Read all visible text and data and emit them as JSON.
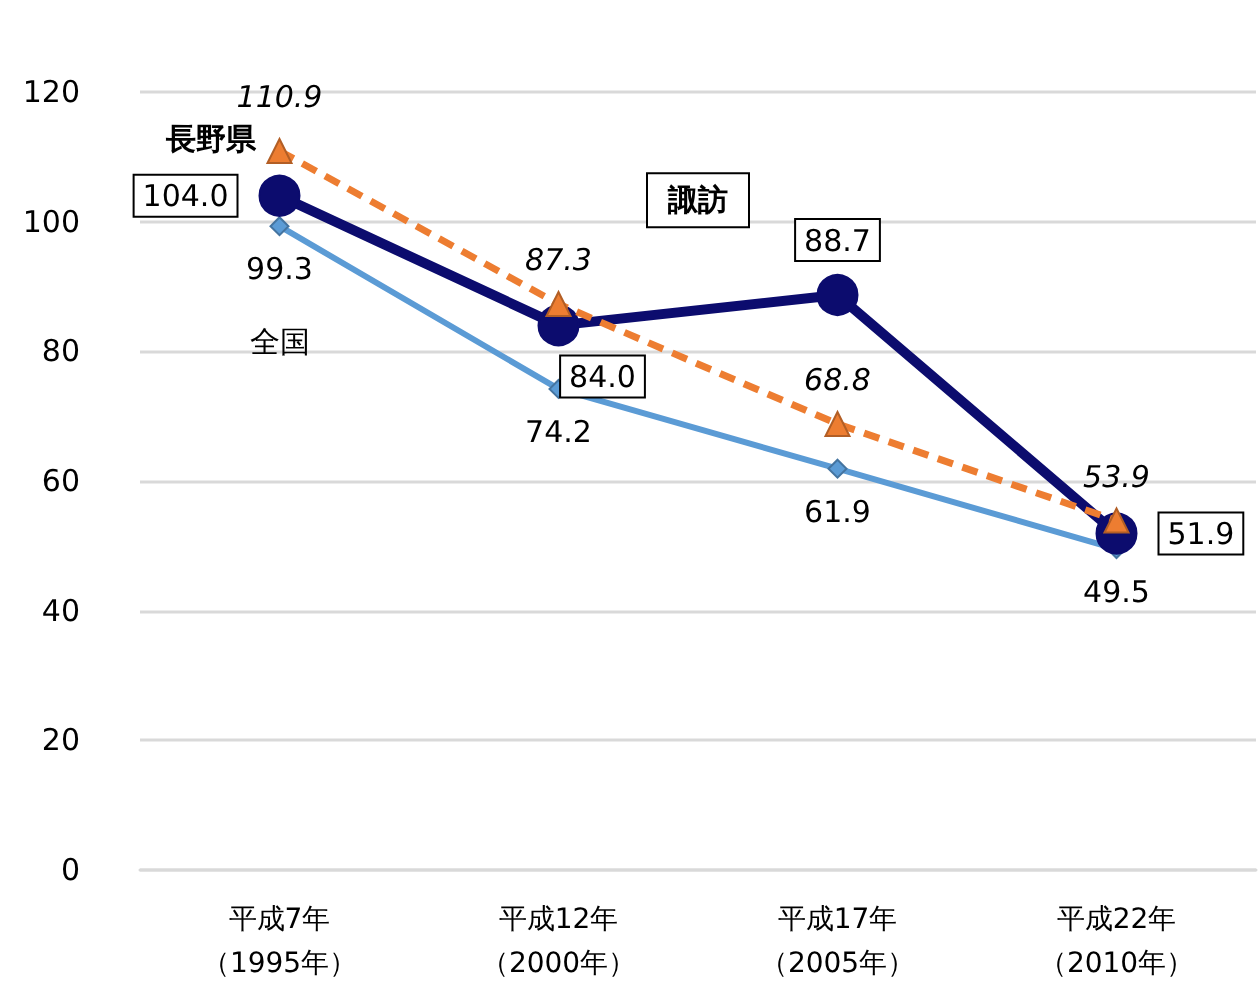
{
  "chart_data": {
    "type": "line",
    "categories": [
      "平成7年（1995年）",
      "平成12年（2000年）",
      "平成17年（2005年）",
      "平成22年（2010年）"
    ],
    "series": [
      {
        "name": "諏訪",
        "color": "#0c0c6e",
        "marker": "circle",
        "line_style": "solid",
        "values": [
          104.0,
          84.0,
          88.7,
          51.9
        ],
        "value_labels": [
          "104.0",
          "84.0",
          "88.7",
          "51.9"
        ]
      },
      {
        "name": "長野県",
        "color": "#ed7d31",
        "marker": "triangle",
        "line_style": "dashed",
        "values": [
          110.9,
          87.3,
          68.8,
          53.9
        ],
        "value_labels": [
          "110.9",
          "87.3",
          "68.8",
          "53.9"
        ]
      },
      {
        "name": "全国",
        "color": "#5b9bd5",
        "marker": "diamond",
        "line_style": "solid",
        "values": [
          99.3,
          74.2,
          61.9,
          49.5
        ],
        "value_labels": [
          "99.3",
          "74.2",
          "61.9",
          "49.5"
        ]
      }
    ],
    "ylim": [
      0,
      120
    ],
    "yticks": [
      0,
      20,
      40,
      60,
      80,
      100,
      120
    ],
    "grid": "y",
    "legend": false
  }
}
